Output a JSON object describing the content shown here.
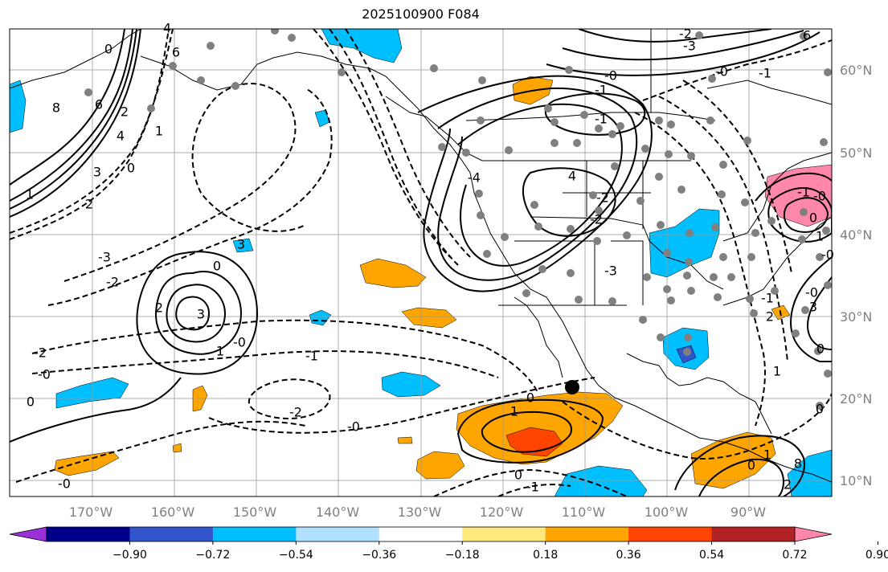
{
  "title": "2025100900 F084",
  "map": {
    "lon_labels": [
      "170°W",
      "160°W",
      "150°W",
      "140°W",
      "130°W",
      "120°W",
      "110°W",
      "100°W",
      "90°W"
    ],
    "lat_labels": [
      "60°N",
      "50°N",
      "40°N",
      "30°N",
      "20°N",
      "10°N"
    ],
    "contour_labels": [
      "0",
      "6",
      "8",
      "6",
      "4",
      "2",
      "1",
      "0",
      "3",
      "2",
      "1",
      "-3",
      "-2",
      "0",
      "-2",
      "-0",
      "0",
      "1",
      "2",
      "3",
      "3",
      "4",
      "-0",
      "-1",
      "-2",
      "-0",
      "0",
      "1",
      "0",
      "-1",
      "-0",
      "4",
      "-2",
      "-1",
      "-0",
      "-1",
      "-2",
      "-3",
      "-4",
      "0",
      "1",
      "2",
      "3",
      "-0",
      "-1",
      "-2",
      "-3",
      "6",
      "8",
      "0",
      "1",
      "2",
      "-0",
      "-1",
      "0",
      "1",
      "-0",
      "-1",
      "0",
      "-0"
    ],
    "storm_marker": "tropical-system-center"
  },
  "colorbar": {
    "ticks": [
      "−0.90",
      "−0.72",
      "−0.54",
      "−0.36",
      "−0.18",
      "0.18",
      "0.36",
      "0.54",
      "0.72",
      "0.90"
    ],
    "colors": [
      "#9b30d9",
      "#00008b",
      "#3355cc",
      "#00bfff",
      "#b0e2ff",
      "#ffffff",
      "#ffe87c",
      "#ffa500",
      "#ff4500",
      "#b22222",
      "#ff88aa"
    ]
  }
}
